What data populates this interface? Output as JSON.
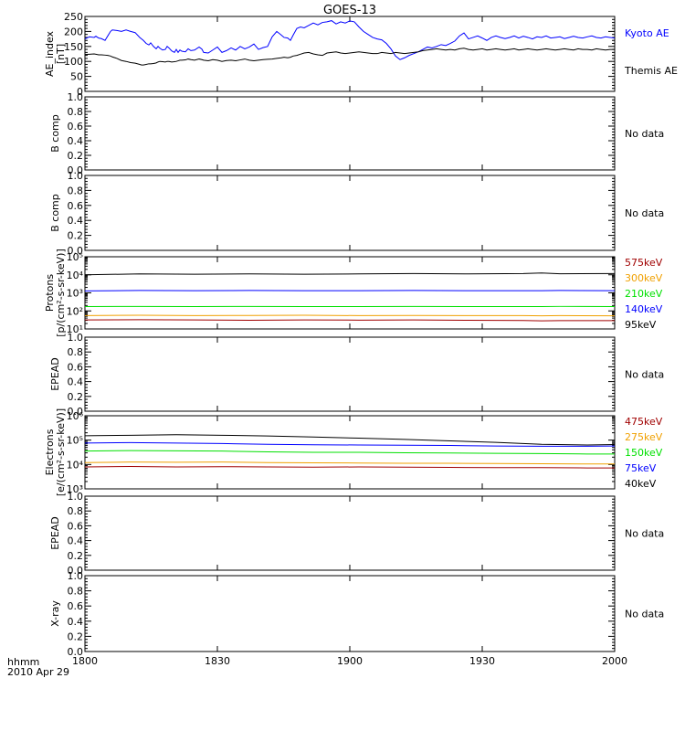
{
  "title": "GOES-13",
  "x_axis": {
    "ticks": [
      "1800",
      "1830",
      "1900",
      "1930",
      "2000"
    ],
    "time_label": "hhmm",
    "date_label": "2010 Apr 29"
  },
  "colors": {
    "black": "#000000",
    "blue": "#0000ff",
    "green": "#00e000",
    "orange": "#f0a000",
    "darkred": "#a00000"
  },
  "chart_data": [
    {
      "type": "line",
      "id": "ae",
      "ylabel": [
        "AE_index",
        "[nT]"
      ],
      "scale": "linear",
      "ylim": [
        0,
        250
      ],
      "yticks": [
        0,
        50,
        100,
        150,
        200,
        250
      ],
      "ytick_labels": [
        "0",
        "50",
        "100",
        "150",
        "200",
        "250"
      ],
      "x": [
        0,
        5,
        10,
        12,
        15,
        18,
        22,
        25,
        28,
        30,
        35,
        40,
        45,
        50,
        55,
        60,
        62,
        64,
        67,
        70,
        72,
        75,
        78,
        80,
        82,
        85,
        88,
        90,
        92,
        95,
        98,
        100,
        102,
        104,
        106,
        110,
        113,
        116,
        120,
        125,
        128,
        130,
        135,
        140,
        145,
        150,
        155,
        160,
        165,
        170,
        175,
        180,
        185,
        190,
        195,
        200,
        205,
        210,
        215,
        218,
        222,
        225,
        228,
        232,
        236,
        240,
        245,
        250,
        255,
        260,
        265,
        270,
        275,
        280,
        285,
        290,
        295,
        300,
        305,
        310,
        315,
        320,
        325,
        330,
        335,
        340,
        345,
        350,
        355,
        360,
        365,
        370,
        375,
        380,
        385,
        390,
        395,
        400,
        405,
        410,
        415,
        420,
        425,
        430,
        435,
        440,
        445,
        450,
        455,
        460,
        465,
        470,
        475,
        480,
        485,
        490,
        495,
        500,
        505,
        510,
        515,
        520,
        525,
        530,
        535,
        540,
        545,
        550,
        555,
        560,
        565,
        570,
        575,
        580
      ],
      "series": [
        {
          "name": "Kyoto AE",
          "color": "#0000ff",
          "values": [
            175,
            182,
            180,
            184,
            178,
            176,
            170,
            185,
            200,
            205,
            203,
            200,
            205,
            200,
            196,
            180,
            175,
            170,
            160,
            155,
            162,
            150,
            142,
            150,
            144,
            138,
            140,
            150,
            145,
            135,
            130,
            140,
            130,
            138,
            134,
            132,
            142,
            136,
            138,
            148,
            141,
            130,
            128,
            138,
            148,
            130,
            136,
            145,
            138,
            150,
            142,
            148,
            158,
            140,
            146,
            150,
            182,
            200,
            188,
            180,
            178,
            170,
            188,
            210,
            215,
            212,
            220,
            228,
            222,
            230,
            232,
            236,
            225,
            232,
            228,
            235,
            232,
            215,
            200,
            190,
            180,
            175,
            172,
            160,
            142,
            118,
            106,
            112,
            120,
            126,
            132,
            140,
            148,
            145,
            150,
            156,
            153,
            160,
            168,
            185,
            195,
            175,
            180,
            185,
            178,
            170,
            180,
            185,
            180,
            176,
            180,
            185,
            178,
            184,
            180,
            175,
            182,
            180,
            185,
            178,
            180,
            182,
            176,
            180,
            184,
            180,
            178,
            182,
            185,
            180,
            178,
            182,
            180,
            178
          ]
        },
        {
          "name": "Themis AE",
          "color": "#000000",
          "values": [
            123,
            124,
            125,
            124,
            122,
            122,
            121,
            120,
            118,
            115,
            110,
            103,
            100,
            96,
            94,
            90,
            88,
            88,
            90,
            92,
            92,
            93,
            95,
            98,
            100,
            99,
            98,
            100,
            100,
            98,
            99,
            100,
            102,
            104,
            104,
            105,
            108,
            106,
            104,
            108,
            106,
            104,
            102,
            106,
            104,
            100,
            103,
            104,
            102,
            105,
            108,
            104,
            102,
            104,
            106,
            107,
            108,
            110,
            112,
            114,
            112,
            114,
            118,
            120,
            124,
            128,
            130,
            125,
            122,
            120,
            128,
            130,
            132,
            128,
            126,
            128,
            130,
            132,
            130,
            128,
            126,
            126,
            130,
            128,
            126,
            130,
            128,
            126,
            128,
            130,
            132,
            136,
            138,
            140,
            142,
            140,
            138,
            140,
            138,
            142,
            144,
            140,
            138,
            140,
            142,
            138,
            140,
            142,
            140,
            138,
            140,
            142,
            138,
            140,
            142,
            140,
            138,
            140,
            142,
            140,
            138,
            140,
            142,
            140,
            138,
            142,
            140,
            140,
            138,
            142,
            140,
            138,
            140,
            140
          ]
        }
      ]
    },
    {
      "type": "line",
      "id": "bcomp1",
      "ylabel": [
        "B comp"
      ],
      "scale": "linear",
      "ylim": [
        0,
        1
      ],
      "yticks": [
        0,
        0.2,
        0.4,
        0.6,
        0.8,
        1.0
      ],
      "ytick_labels": [
        "0.0",
        "0.2",
        "0.4",
        "0.6",
        "0.8",
        "1.0"
      ],
      "note": "No data",
      "series": []
    },
    {
      "type": "line",
      "id": "bcomp2",
      "ylabel": [
        "B comp"
      ],
      "scale": "linear",
      "ylim": [
        0,
        1
      ],
      "yticks": [
        0,
        0.2,
        0.4,
        0.6,
        0.8,
        1.0
      ],
      "ytick_labels": [
        "0.0",
        "0.2",
        "0.4",
        "0.6",
        "0.8",
        "1.0"
      ],
      "note": "No data",
      "series": []
    },
    {
      "type": "line",
      "id": "protons",
      "ylabel": [
        "Protons",
        "[p/(cm²-s-sr-keV)]"
      ],
      "scale": "log",
      "ylim": [
        1,
        5
      ],
      "yticks": [
        1,
        2,
        3,
        4,
        5
      ],
      "ytick_labels": [
        "10¹",
        "10²",
        "10³",
        "10⁴",
        "10⁵"
      ],
      "x": [
        0,
        60,
        120,
        180,
        240,
        300,
        360,
        420,
        480,
        500,
        520,
        580
      ],
      "series": [
        {
          "name": "575keV",
          "color": "#a00000",
          "values": [
            1.5,
            1.51,
            1.5,
            1.48,
            1.5,
            1.49,
            1.5,
            1.48,
            1.47,
            1.45,
            1.46,
            1.46
          ]
        },
        {
          "name": "300keV",
          "color": "#f0a000",
          "values": [
            1.74,
            1.76,
            1.74,
            1.75,
            1.76,
            1.74,
            1.75,
            1.74,
            1.74,
            1.73,
            1.74,
            1.73
          ]
        },
        {
          "name": "210keV",
          "color": "#00e000",
          "values": [
            2.24,
            2.25,
            2.24,
            2.25,
            2.24,
            2.24,
            2.25,
            2.24,
            2.24,
            2.24,
            2.25,
            2.24
          ]
        },
        {
          "name": "140keV",
          "color": "#0000ff",
          "values": [
            3.11,
            3.13,
            3.12,
            3.13,
            3.12,
            3.12,
            3.13,
            3.12,
            3.12,
            3.12,
            3.13,
            3.12
          ]
        },
        {
          "name": "95keV",
          "color": "#000000",
          "values": [
            4.0,
            4.05,
            4.03,
            4.05,
            4.03,
            4.05,
            4.07,
            4.05,
            4.07,
            4.1,
            4.06,
            4.07
          ]
        }
      ]
    },
    {
      "type": "line",
      "id": "epead1",
      "ylabel": [
        "EPEAD"
      ],
      "scale": "linear",
      "ylim": [
        0,
        1
      ],
      "yticks": [
        0,
        0.2,
        0.4,
        0.6,
        0.8,
        1.0
      ],
      "ytick_labels": [
        "0.0",
        "0.2",
        "0.4",
        "0.6",
        "0.8",
        "1.0"
      ],
      "note": "No data",
      "series": []
    },
    {
      "type": "line",
      "id": "electrons",
      "ylabel": [
        "Electrons",
        "[e/(cm²-s-sr-keV)]"
      ],
      "scale": "log",
      "ylim": [
        3,
        6
      ],
      "yticks": [
        3,
        4,
        5,
        6
      ],
      "ytick_labels": [
        "10³",
        "10⁴",
        "10⁵",
        "10⁶"
      ],
      "x": [
        0,
        50,
        100,
        150,
        200,
        250,
        300,
        350,
        400,
        450,
        500,
        550,
        580
      ],
      "series": [
        {
          "name": "475keV",
          "color": "#a00000",
          "values": [
            3.9,
            3.92,
            3.9,
            3.91,
            3.9,
            3.89,
            3.9,
            3.89,
            3.88,
            3.87,
            3.87,
            3.86,
            3.86
          ]
        },
        {
          "name": "275keV",
          "color": "#f0a000",
          "values": [
            4.08,
            4.1,
            4.09,
            4.1,
            4.08,
            4.07,
            4.06,
            4.05,
            4.05,
            4.04,
            4.03,
            4.02,
            4.02
          ]
        },
        {
          "name": "150keV",
          "color": "#00e000",
          "values": [
            4.55,
            4.57,
            4.56,
            4.55,
            4.52,
            4.5,
            4.5,
            4.48,
            4.47,
            4.46,
            4.45,
            4.43,
            4.43
          ]
        },
        {
          "name": "75keV",
          "color": "#0000ff",
          "values": [
            4.88,
            4.9,
            4.88,
            4.86,
            4.83,
            4.81,
            4.8,
            4.79,
            4.78,
            4.76,
            4.75,
            4.75,
            4.76
          ]
        },
        {
          "name": "40keV",
          "color": "#000000",
          "values": [
            5.18,
            5.2,
            5.22,
            5.2,
            5.17,
            5.13,
            5.08,
            5.03,
            4.97,
            4.91,
            4.83,
            4.8,
            4.82
          ]
        }
      ]
    },
    {
      "type": "line",
      "id": "epead2",
      "ylabel": [
        "EPEAD"
      ],
      "scale": "linear",
      "ylim": [
        0,
        1
      ],
      "yticks": [
        0,
        0.2,
        0.4,
        0.6,
        0.8,
        1.0
      ],
      "ytick_labels": [
        "0.0",
        "0.2",
        "0.4",
        "0.6",
        "0.8",
        "1.0"
      ],
      "note": "No data",
      "series": []
    },
    {
      "type": "line",
      "id": "xray",
      "ylabel": [
        "X-ray"
      ],
      "scale": "linear",
      "ylim": [
        0,
        1
      ],
      "yticks": [
        0,
        0.2,
        0.4,
        0.6,
        0.8,
        1.0
      ],
      "ytick_labels": [
        "0.0",
        "0.2",
        "0.4",
        "0.6",
        "0.8",
        "1.0"
      ],
      "note": "No data",
      "series": []
    }
  ]
}
